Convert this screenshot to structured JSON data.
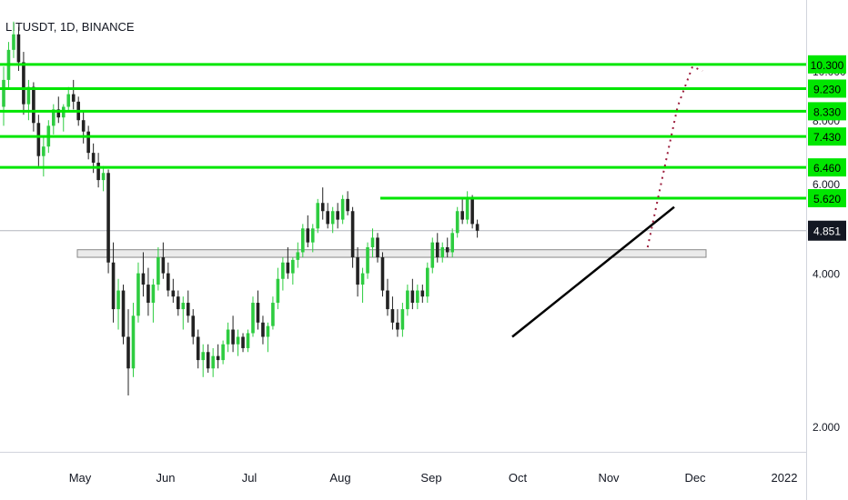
{
  "header": {
    "title": "LITUSDT, 1D, BINANCE"
  },
  "chart_data": {
    "type": "candlestick",
    "title": "LITUSDT, 1D, BINANCE",
    "y_scale": "log",
    "y_ticks": [
      "10.000",
      "8.000",
      "6.000",
      "4.000",
      "2.000"
    ],
    "y_tick_values": [
      10,
      8,
      6,
      4,
      2
    ],
    "x_ticks": [
      "May",
      "Jun",
      "Jul",
      "Aug",
      "Sep",
      "Oct",
      "Nov",
      "Dec",
      "2022"
    ],
    "current_price": {
      "label": "4.851",
      "value": 4.851
    },
    "horizontal_levels": [
      {
        "label": "10.300",
        "value": 10.3,
        "color": "#00e600"
      },
      {
        "label": "9.230",
        "value": 9.23,
        "color": "#00e600"
      },
      {
        "label": "8.330",
        "value": 8.33,
        "color": "#00e600"
      },
      {
        "label": "7.430",
        "value": 7.43,
        "color": "#00e600"
      },
      {
        "label": "6.460",
        "value": 6.46,
        "color": "#00e600"
      },
      {
        "label": "5.620",
        "value": 5.62,
        "color": "#00e600"
      }
    ],
    "colors": {
      "up": "#2ecc40",
      "down": "#222222",
      "level": "#00e600",
      "projection": "#9b1b3a",
      "trendline": "#000000"
    },
    "candles": [
      [
        8.5,
        10.2,
        7.8,
        9.6
      ],
      [
        9.6,
        11.4,
        9.2,
        11.0
      ],
      [
        11.0,
        12.5,
        10.6,
        11.8
      ],
      [
        11.8,
        12.2,
        10.0,
        10.4
      ],
      [
        10.4,
        10.9,
        8.2,
        8.6
      ],
      [
        8.6,
        9.6,
        8.0,
        9.3
      ],
      [
        9.3,
        9.5,
        7.6,
        7.9
      ],
      [
        7.9,
        8.2,
        6.5,
        6.8
      ],
      [
        6.8,
        7.4,
        6.2,
        7.1
      ],
      [
        7.1,
        8.0,
        6.9,
        7.8
      ],
      [
        7.8,
        8.6,
        7.5,
        8.4
      ],
      [
        8.4,
        8.9,
        7.9,
        8.1
      ],
      [
        8.1,
        8.6,
        7.6,
        8.5
      ],
      [
        8.5,
        9.3,
        8.3,
        9.0
      ],
      [
        9.0,
        9.6,
        8.4,
        8.7
      ],
      [
        8.7,
        8.9,
        7.8,
        8.0
      ],
      [
        8.0,
        8.3,
        7.2,
        7.6
      ],
      [
        7.6,
        7.8,
        6.7,
        6.9
      ],
      [
        6.9,
        7.2,
        6.3,
        6.6
      ],
      [
        6.6,
        6.9,
        5.9,
        6.1
      ],
      [
        6.1,
        6.5,
        5.8,
        6.3
      ],
      [
        6.3,
        6.4,
        4.0,
        4.2
      ],
      [
        4.2,
        4.6,
        3.2,
        3.4
      ],
      [
        3.4,
        3.9,
        3.1,
        3.7
      ],
      [
        3.7,
        3.8,
        2.9,
        3.0
      ],
      [
        3.0,
        3.4,
        2.3,
        2.6
      ],
      [
        2.6,
        3.5,
        2.5,
        3.3
      ],
      [
        3.3,
        4.2,
        3.2,
        4.0
      ],
      [
        4.0,
        4.4,
        3.6,
        3.8
      ],
      [
        3.8,
        4.1,
        3.3,
        3.5
      ],
      [
        3.5,
        3.9,
        3.2,
        3.8
      ],
      [
        3.8,
        4.5,
        3.7,
        4.3
      ],
      [
        4.3,
        4.6,
        3.9,
        4.0
      ],
      [
        4.0,
        4.2,
        3.6,
        3.7
      ],
      [
        3.7,
        3.9,
        3.5,
        3.6
      ],
      [
        3.6,
        3.7,
        3.3,
        3.4
      ],
      [
        3.4,
        3.6,
        3.1,
        3.5
      ],
      [
        3.5,
        3.7,
        3.2,
        3.3
      ],
      [
        3.3,
        3.4,
        2.9,
        3.0
      ],
      [
        3.0,
        3.1,
        2.6,
        2.7
      ],
      [
        2.7,
        2.9,
        2.5,
        2.8
      ],
      [
        2.8,
        2.9,
        2.55,
        2.6
      ],
      [
        2.6,
        2.85,
        2.5,
        2.75
      ],
      [
        2.75,
        2.9,
        2.6,
        2.7
      ],
      [
        2.7,
        2.95,
        2.65,
        2.9
      ],
      [
        2.9,
        3.2,
        2.8,
        3.1
      ],
      [
        3.1,
        3.3,
        2.8,
        2.9
      ],
      [
        2.9,
        3.1,
        2.75,
        3.0
      ],
      [
        3.0,
        3.05,
        2.8,
        2.85
      ],
      [
        2.85,
        3.1,
        2.8,
        3.05
      ],
      [
        3.05,
        3.6,
        3.0,
        3.5
      ],
      [
        3.5,
        3.7,
        3.1,
        3.2
      ],
      [
        3.2,
        3.3,
        2.9,
        3.0
      ],
      [
        3.0,
        3.2,
        2.8,
        3.15
      ],
      [
        3.15,
        3.6,
        3.1,
        3.5
      ],
      [
        3.5,
        4.1,
        3.4,
        3.9
      ],
      [
        3.9,
        4.3,
        3.7,
        4.2
      ],
      [
        4.2,
        4.5,
        3.9,
        4.0
      ],
      [
        4.0,
        4.3,
        3.8,
        4.25
      ],
      [
        4.25,
        4.6,
        4.1,
        4.4
      ],
      [
        4.4,
        5.0,
        4.3,
        4.9
      ],
      [
        4.9,
        5.2,
        4.5,
        4.6
      ],
      [
        4.6,
        5.0,
        4.4,
        4.9
      ],
      [
        4.9,
        5.6,
        4.8,
        5.5
      ],
      [
        5.5,
        5.9,
        5.1,
        5.3
      ],
      [
        5.3,
        5.5,
        4.9,
        5.0
      ],
      [
        5.0,
        5.4,
        4.8,
        5.3
      ],
      [
        5.3,
        5.5,
        4.9,
        5.1
      ],
      [
        5.1,
        5.7,
        5.0,
        5.6
      ],
      [
        5.6,
        5.8,
        5.2,
        5.3
      ],
      [
        5.3,
        5.4,
        4.1,
        4.3
      ],
      [
        4.3,
        4.5,
        3.6,
        3.8
      ],
      [
        3.8,
        4.1,
        3.5,
        4.0
      ],
      [
        4.0,
        4.6,
        3.9,
        4.5
      ],
      [
        4.5,
        4.9,
        4.3,
        4.7
      ],
      [
        4.7,
        4.8,
        4.2,
        4.3
      ],
      [
        4.3,
        4.4,
        3.6,
        3.7
      ],
      [
        3.7,
        3.9,
        3.3,
        3.4
      ],
      [
        3.4,
        3.6,
        3.1,
        3.2
      ],
      [
        3.2,
        3.4,
        3.0,
        3.1
      ],
      [
        3.1,
        3.5,
        3.0,
        3.4
      ],
      [
        3.4,
        3.8,
        3.3,
        3.7
      ],
      [
        3.7,
        3.9,
        3.4,
        3.5
      ],
      [
        3.5,
        3.8,
        3.4,
        3.7
      ],
      [
        3.7,
        3.8,
        3.5,
        3.6
      ],
      [
        3.6,
        4.2,
        3.5,
        4.1
      ],
      [
        4.1,
        4.7,
        4.0,
        4.6
      ],
      [
        4.6,
        4.8,
        4.2,
        4.3
      ],
      [
        4.3,
        4.6,
        4.2,
        4.5
      ],
      [
        4.5,
        4.7,
        4.3,
        4.4
      ],
      [
        4.4,
        4.9,
        4.3,
        4.8
      ],
      [
        4.8,
        5.4,
        4.7,
        5.3
      ],
      [
        5.3,
        5.6,
        5.0,
        5.1
      ],
      [
        5.1,
        5.8,
        5.0,
        5.6
      ],
      [
        5.6,
        5.7,
        4.9,
        5.0
      ],
      [
        5.0,
        5.1,
        4.7,
        4.85
      ]
    ],
    "trendline": {
      "from_candle": 78,
      "from_value": 3.0,
      "to_value": 5.4,
      "to_candle": 125
    },
    "support_zone": {
      "from_candle": 19,
      "to_candle": 130,
      "low": 4.3,
      "high": 4.45
    },
    "resistance_line": {
      "from_candle": 63,
      "to_candle": 109,
      "value": 5.62
    },
    "projection": [
      [
        110,
        4.5
      ],
      [
        113,
        6.2
      ],
      [
        116,
        8.5
      ],
      [
        119,
        10.2
      ],
      [
        121,
        10.0
      ]
    ]
  }
}
